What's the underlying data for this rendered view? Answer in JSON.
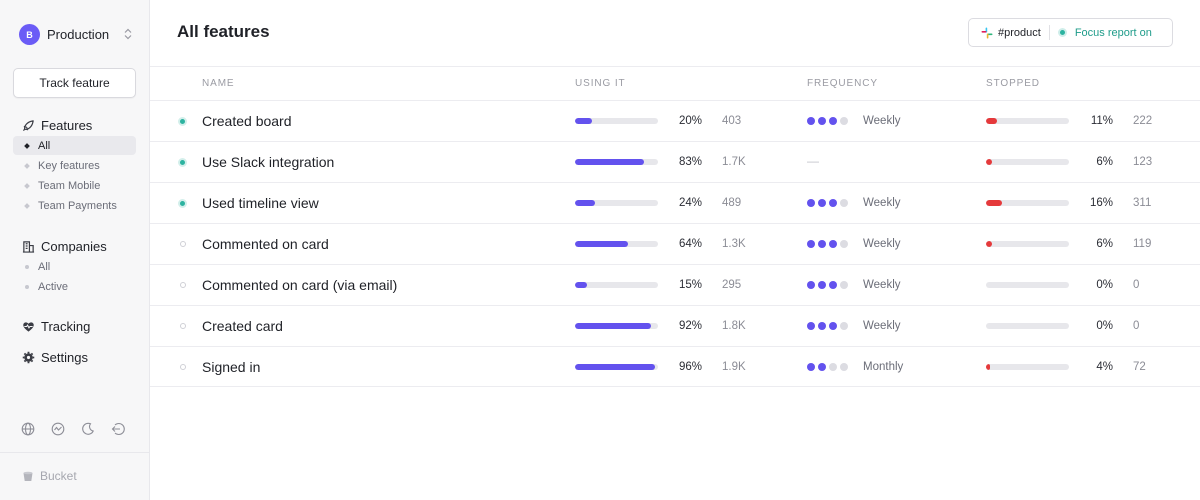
{
  "sidebar": {
    "env_badge": "B",
    "env_name": "Production",
    "env_switch": "⌃⌄",
    "track_button": "Track feature",
    "features": {
      "label": "Features",
      "items": [
        {
          "label": "All",
          "active": true
        },
        {
          "label": "Key features",
          "active": false
        },
        {
          "label": "Team Mobile",
          "active": false
        },
        {
          "label": "Team Payments",
          "active": false
        }
      ]
    },
    "companies": {
      "label": "Companies",
      "items": [
        {
          "label": "All"
        },
        {
          "label": "Active"
        }
      ]
    },
    "tracking_label": "Tracking",
    "settings_label": "Settings",
    "footer_icons": [
      "globe-icon",
      "activity-icon",
      "moon-icon",
      "logout-icon"
    ],
    "brand": "Bucket"
  },
  "header": {
    "title": "All features",
    "slack_channel": "#product",
    "focus_label": "Focus report on"
  },
  "table": {
    "columns": {
      "name": "NAME",
      "using": "USING IT",
      "frequency": "FREQUENCY",
      "stopped": "STOPPED"
    },
    "rows": [
      {
        "name": "Created board",
        "key": true,
        "using_pct": 20,
        "using_label": "20%",
        "using_count": "403",
        "freq_dots": 3,
        "frequency": "Weekly",
        "stopped_pct": 11,
        "stopped_label": "11%",
        "stopped_count": "222"
      },
      {
        "name": "Use Slack integration",
        "key": true,
        "using_pct": 83,
        "using_label": "83%",
        "using_count": "1.7K",
        "freq_dots": 0,
        "frequency": "—",
        "stopped_pct": 6,
        "stopped_label": "6%",
        "stopped_count": "123"
      },
      {
        "name": "Used timeline view",
        "key": true,
        "using_pct": 24,
        "using_label": "24%",
        "using_count": "489",
        "freq_dots": 3,
        "frequency": "Weekly",
        "stopped_pct": 16,
        "stopped_label": "16%",
        "stopped_count": "311"
      },
      {
        "name": "Commented on card",
        "key": false,
        "using_pct": 64,
        "using_label": "64%",
        "using_count": "1.3K",
        "freq_dots": 3,
        "frequency": "Weekly",
        "stopped_pct": 6,
        "stopped_label": "6%",
        "stopped_count": "119"
      },
      {
        "name": "Commented on card (via email)",
        "key": false,
        "using_pct": 15,
        "using_label": "15%",
        "using_count": "295",
        "freq_dots": 3,
        "frequency": "Weekly",
        "stopped_pct": 0,
        "stopped_label": "0%",
        "stopped_count": "0"
      },
      {
        "name": "Created card",
        "key": false,
        "using_pct": 92,
        "using_label": "92%",
        "using_count": "1.8K",
        "freq_dots": 3,
        "frequency": "Weekly",
        "stopped_pct": 0,
        "stopped_label": "0%",
        "stopped_count": "0"
      },
      {
        "name": "Signed in",
        "key": false,
        "using_pct": 96,
        "using_label": "96%",
        "using_count": "1.9K",
        "freq_dots": 2,
        "frequency": "Monthly",
        "stopped_pct": 4,
        "stopped_label": "4%",
        "stopped_count": "72"
      }
    ]
  },
  "colors": {
    "accent": "#6352ee",
    "stopped": "#e5393b",
    "active_status": "#2db3a0"
  }
}
